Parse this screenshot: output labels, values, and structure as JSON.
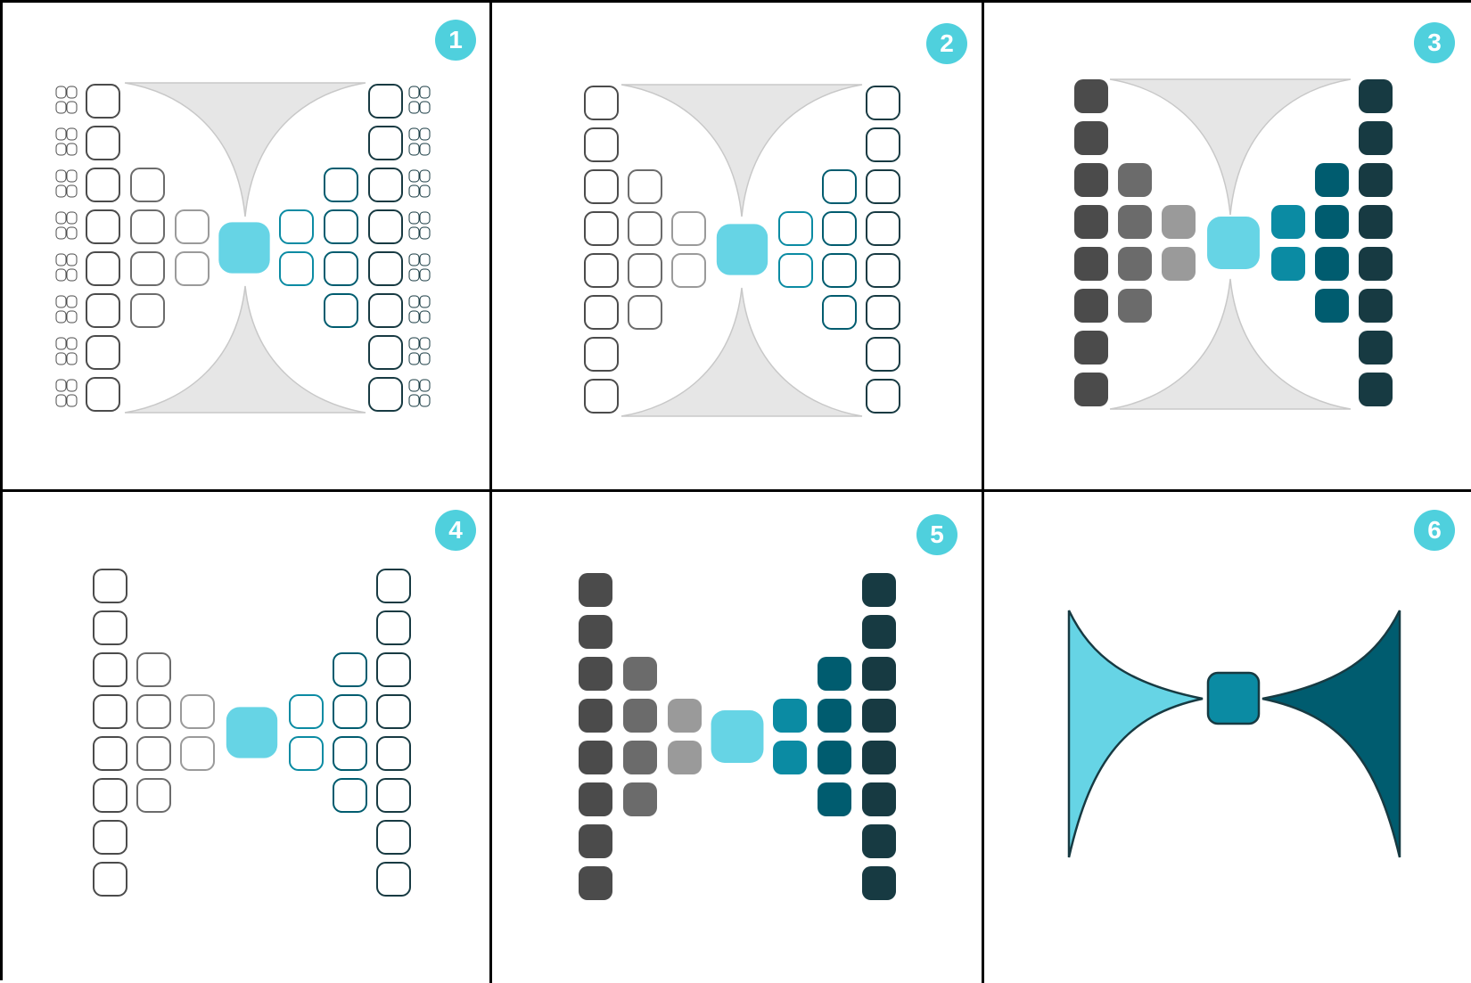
{
  "panels": [
    {
      "id": "1",
      "label": "1",
      "variant": "outline-grouped"
    },
    {
      "id": "2",
      "label": "2",
      "variant": "outline"
    },
    {
      "id": "3",
      "label": "3",
      "variant": "filled"
    },
    {
      "id": "4",
      "label": "4",
      "variant": "outline-no-bg"
    },
    {
      "id": "5",
      "label": "5",
      "variant": "filled-no-bg"
    },
    {
      "id": "6",
      "label": "6",
      "variant": "bowtie"
    }
  ],
  "colors": {
    "badge": "#4fd0dd",
    "hourglass_fill": "#e6e6e6",
    "hourglass_stroke": "#c8c8c8",
    "center_block": "#66d4e5",
    "gray_dark": "#4b4b4b",
    "gray_mid": "#6b6b6b",
    "gray_light": "#9a9a9a",
    "teal_light": "#0b8ba3",
    "teal_mid": "#005c6f",
    "teal_dark": "#173a42",
    "bowtie_left": "#66d4e5",
    "bowtie_right": "#005c6f",
    "bowtie_center": "#0b8ba3",
    "bowtie_stroke": "#173a42"
  }
}
